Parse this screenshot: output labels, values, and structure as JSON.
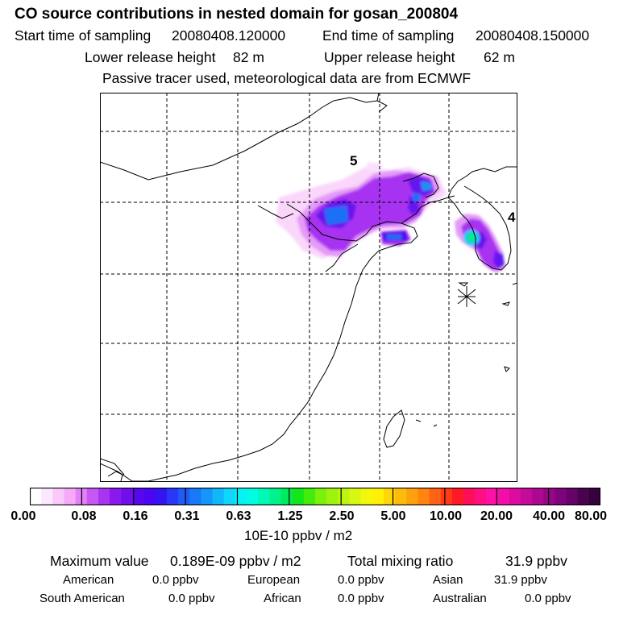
{
  "header": {
    "title": "CO  source contributions in nested domain for gosan_200804",
    "start_label": "Start time of sampling",
    "start_value": "20080408.120000",
    "end_label": "End time of sampling",
    "end_value": "20080408.150000",
    "lower_label": "Lower release height",
    "lower_value": "82 m",
    "upper_label": "Upper release height",
    "upper_value": "62 m",
    "note": "Passive tracer used, meteorological data are from ECMWF"
  },
  "map": {
    "day_labels": [
      "5",
      "4"
    ],
    "receptor_marker": "star-marker"
  },
  "colorbar": {
    "colors": [
      "#ffffff",
      "#fde6ff",
      "#fbc8fc",
      "#f7a9f8",
      "#e280f5",
      "#c657f3",
      "#a834f1",
      "#8a19ee",
      "#6f10ec",
      "#5a06ee",
      "#4a06f0",
      "#3514f2",
      "#2a37f4",
      "#1f5bf6",
      "#1a79f7",
      "#1596f8",
      "#12b7fa",
      "#0fd6fb",
      "#05f2f6",
      "#00fde2",
      "#00f8b8",
      "#00f28c",
      "#00eb5c",
      "#14e61c",
      "#43ec0a",
      "#7af00b",
      "#9ef30e",
      "#bdf412",
      "#d8f814",
      "#f3f70c",
      "#fff006",
      "#ffd608",
      "#ffbb0b",
      "#ffa00d",
      "#ff8510",
      "#ff6213",
      "#ff3b16",
      "#ff1a2a",
      "#ff0e5a",
      "#ff0f84",
      "#ff10a8",
      "#f40ea8",
      "#dd0ca1",
      "#c40b99",
      "#ad0892",
      "#970687",
      "#7e047b",
      "#650366",
      "#4b024f",
      "#35013d"
    ],
    "tick_labels": [
      "0.00",
      "0.08",
      "0.16",
      "0.31",
      "0.63",
      "1.25",
      "2.50",
      "5.00",
      "10.00",
      "20.00",
      "40.00",
      "80.00"
    ],
    "unit": "10E-10 ppbv / m2"
  },
  "footer": {
    "max_label": "Maximum value",
    "max_value": "0.189E-09 ppbv / m2",
    "total_label": "Total mixing ratio",
    "total_value": "31.9 ppbv",
    "regions": [
      {
        "name": "American",
        "value": "0.0 ppbv"
      },
      {
        "name": "European",
        "value": "0.0 ppbv"
      },
      {
        "name": "Asian",
        "value": "31.9 ppbv"
      },
      {
        "name": "South American",
        "value": "0.0 ppbv"
      },
      {
        "name": "African",
        "value": "0.0 ppbv"
      },
      {
        "name": "Australian",
        "value": "0.0 ppbv"
      }
    ]
  }
}
